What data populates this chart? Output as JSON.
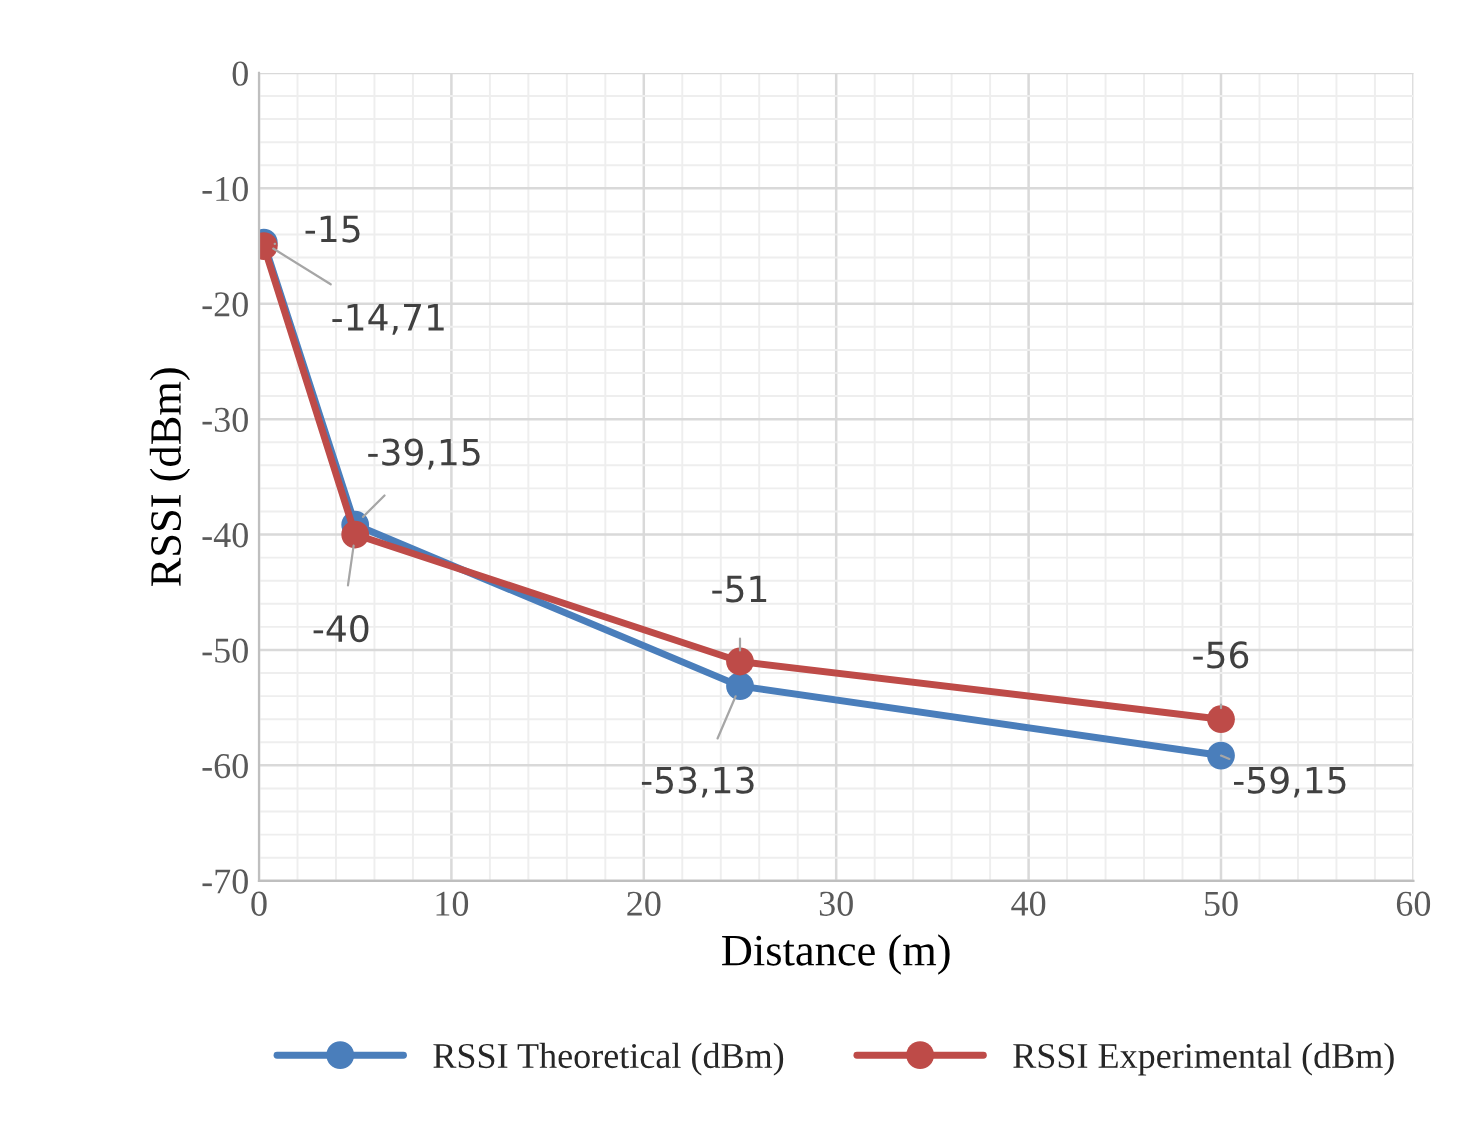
{
  "chart_data": {
    "type": "line",
    "xlabel": "Distance (m)",
    "ylabel": "RSSI (dBm)",
    "x": [
      0.25,
      5,
      25,
      50
    ],
    "series": [
      {
        "name": "RSSI Theoretical (dBm)",
        "color": "#4a7ebb",
        "values": [
          -14.71,
          -39.15,
          -53.13,
          -59.15
        ],
        "value_labels": [
          "-14,71",
          "-39,15",
          "-53,13",
          "-59,15"
        ]
      },
      {
        "name": "RSSI Experimental (dBm)",
        "color": "#be4b48",
        "values": [
          -15,
          -40,
          -51,
          -56
        ],
        "value_labels": [
          "-15",
          "-40",
          "-51",
          "-56"
        ]
      }
    ],
    "xlim": [
      0,
      60
    ],
    "xticks": [
      0,
      10,
      20,
      30,
      40,
      50,
      60
    ],
    "ylim": [
      -70,
      0
    ],
    "yticks": [
      -70,
      -60,
      -50,
      -40,
      -30,
      -20,
      -10,
      0
    ],
    "grid": true,
    "legend": "bottom",
    "marker": "circle",
    "line_style": "solid"
  }
}
